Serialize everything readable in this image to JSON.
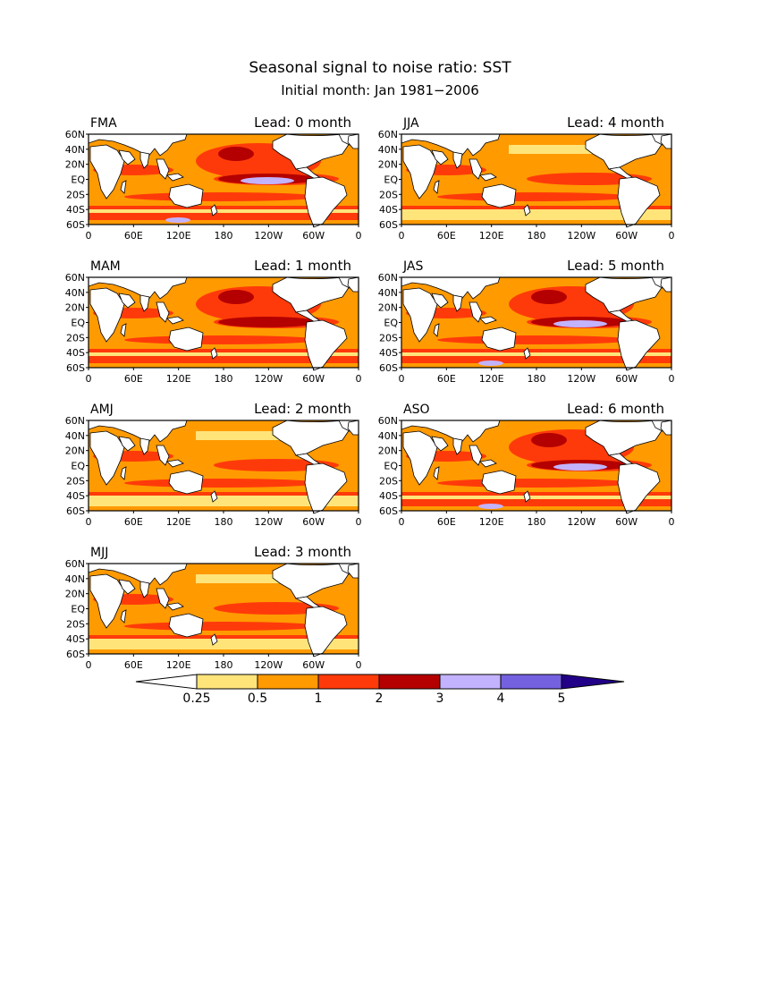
{
  "header": {
    "title": "Seasonal signal to noise ratio: SST",
    "subtitle": "Initial month: Jan 1981−2006"
  },
  "panels": [
    {
      "season": "FMA",
      "lead": "Lead: 0 month",
      "max_class": 6
    },
    {
      "season": "JJA",
      "lead": "Lead: 4 month",
      "max_class": 4
    },
    {
      "season": "MAM",
      "lead": "Lead: 1 month",
      "max_class": 5
    },
    {
      "season": "JAS",
      "lead": "Lead: 5 month",
      "max_class": 6
    },
    {
      "season": "AMJ",
      "lead": "Lead: 2 month",
      "max_class": 4
    },
    {
      "season": "ASO",
      "lead": "Lead: 6 month",
      "max_class": 6
    },
    {
      "season": "MJJ",
      "lead": "Lead: 3 month",
      "max_class": 4
    }
  ],
  "axes": {
    "lat_ticks": [
      "60N",
      "40N",
      "20N",
      "EQ",
      "20S",
      "40S",
      "60S"
    ],
    "lon_ticks": [
      "0",
      "60E",
      "120E",
      "180",
      "120W",
      "60W",
      "0"
    ]
  },
  "colorbar": {
    "labels": [
      "0.25",
      "0.5",
      "1",
      "2",
      "3",
      "4",
      "5"
    ],
    "colors": [
      "#ffffff",
      "#ffe47a",
      "#ff9a00",
      "#ff3a0a",
      "#b40000",
      "#c3b3ff",
      "#7361e0",
      "#220088"
    ]
  },
  "colors": {
    "land": "#ffffff",
    "coast": "#000000"
  }
}
